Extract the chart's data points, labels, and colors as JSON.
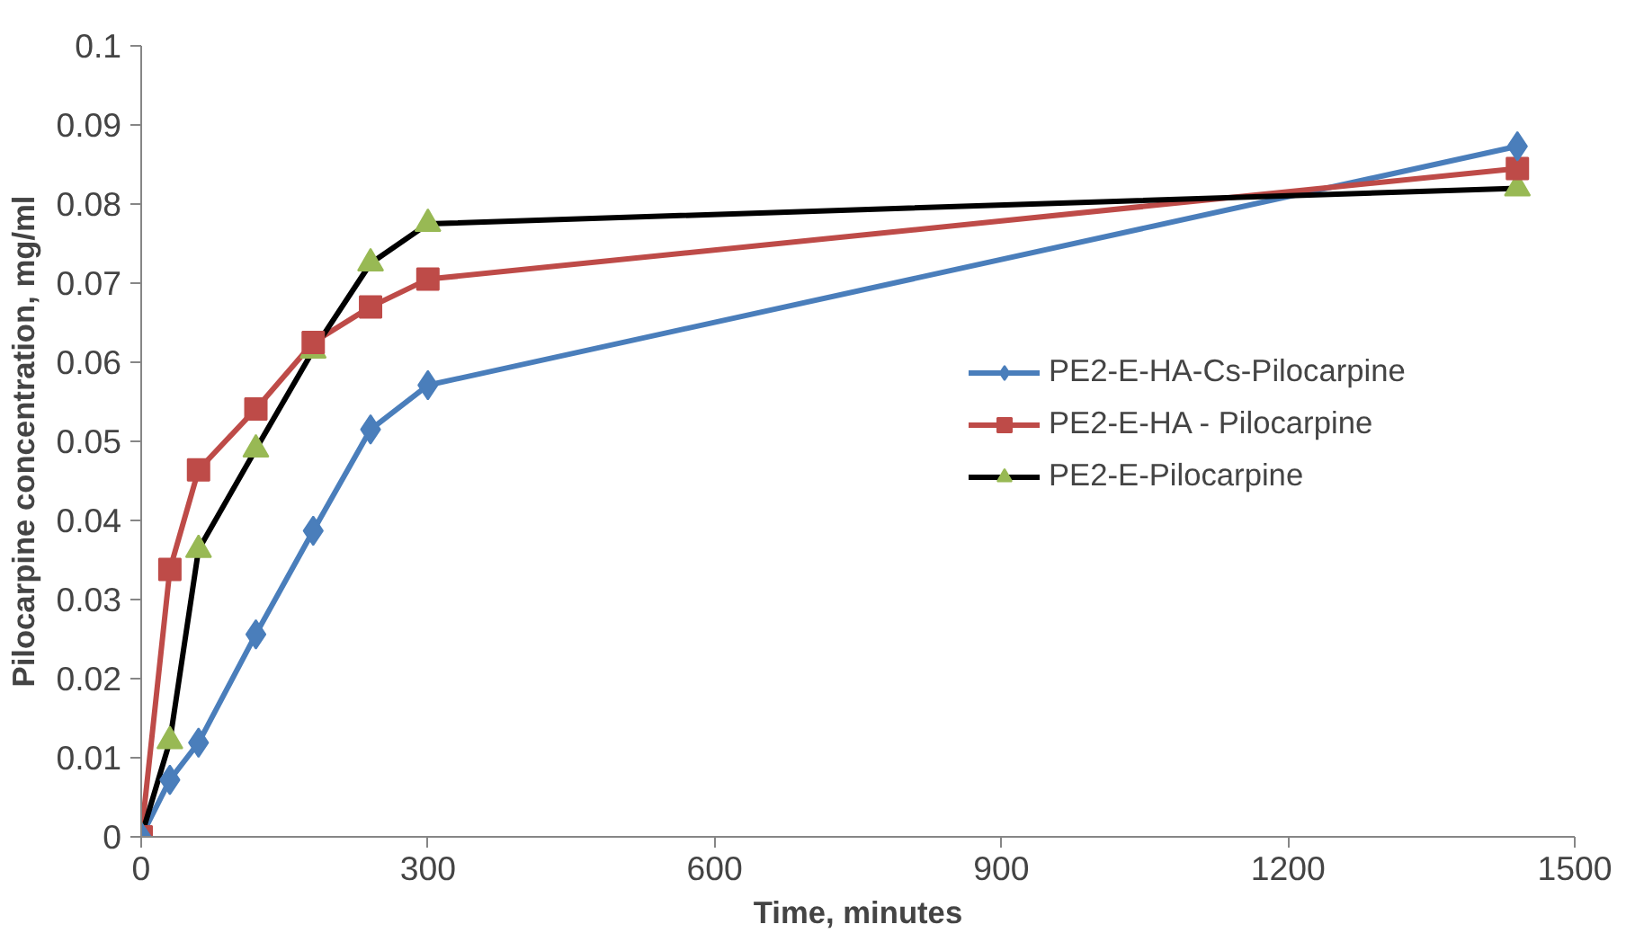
{
  "chart_data": {
    "type": "line",
    "xlabel": "Time, minutes",
    "ylabel": "Pilocarpine concentration, mg/ml",
    "x": [
      0,
      30,
      60,
      120,
      180,
      240,
      300,
      1440
    ],
    "xlim": [
      0,
      1500
    ],
    "xticks": [
      0,
      300,
      600,
      900,
      1200,
      1500
    ],
    "ylim": [
      0,
      0.1
    ],
    "yticks": [
      0,
      0.01,
      0.02,
      0.03,
      0.04,
      0.05,
      0.06,
      0.07,
      0.08,
      0.09,
      0.1
    ],
    "grid": false,
    "legend": "right",
    "line_style": "solid",
    "series": [
      {
        "name": "PE2-E-HA-Cs-Pilocarpine",
        "color": "#4a7ebb",
        "marker": "diamond",
        "values": [
          0,
          0.0072,
          0.0119,
          0.0256,
          0.0387,
          0.0515,
          0.0571,
          0.0873
        ]
      },
      {
        "name": "PE2-E-HA - Pilocarpine",
        "color": "#be4b48",
        "marker": "square",
        "values": [
          0,
          0.0338,
          0.0464,
          0.0541,
          0.0625,
          0.067,
          0.0705,
          0.0845
        ]
      },
      {
        "name": "PE2-E-Pilocarpine",
        "color": "#000000",
        "colors": [
          "#98b954",
          "#98b954",
          "#98b954",
          "#98b954",
          "#98b954",
          "#98b954",
          "#98b954",
          "#98b954"
        ],
        "marker": "triangle",
        "values": [
          0,
          0.0121,
          0.0363,
          0.049,
          0.0615,
          0.0725,
          0.0775,
          0.082
        ]
      }
    ]
  }
}
